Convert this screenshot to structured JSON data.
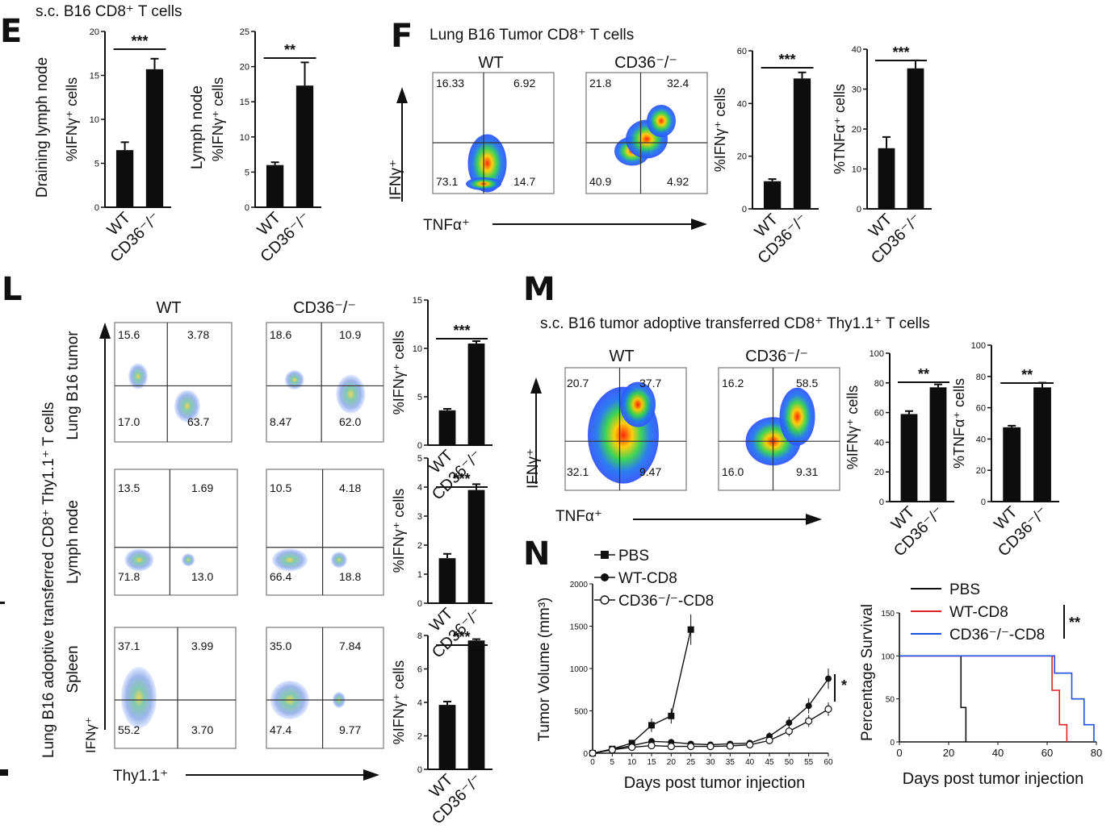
{
  "panels": {
    "E": {
      "letter": "E",
      "title": "s.c. B16 CD8⁺ T cells"
    },
    "F": {
      "letter": "F",
      "title": "Lung B16 Tumor CD8⁺ T cells",
      "x_label": "TNFα⁺",
      "y_label": "IFNγ⁺"
    },
    "L": {
      "letter": "L",
      "side_label": "Lung B16 adoptive transferred CD8⁺ Thy1.1⁺ T cells",
      "row_labels": [
        "Lung B16 tumor",
        "Lymph node",
        "Spleen"
      ],
      "x_label": "Thy1.1⁺",
      "y_label": "IFNγ⁺"
    },
    "M": {
      "letter": "M",
      "title": "s.c. B16 tumor adoptive transferred CD8⁺ Thy1.1⁺ T cells",
      "x_label": "TNFα⁺",
      "y_label": "IFNγ⁺"
    },
    "N": {
      "letter": "N"
    }
  },
  "flow_plots": [
    {
      "id": "F-WT",
      "header": "WT",
      "quadrants": [
        "16.33",
        "6.92",
        "73.1",
        "14.7"
      ]
    },
    {
      "id": "F-KO",
      "header": "CD36⁻/⁻",
      "quadrants": [
        "21.8",
        "32.4",
        "40.9",
        "4.92"
      ]
    },
    {
      "id": "L-WT-tumor",
      "header": "WT",
      "quadrants": [
        "15.6",
        "3.78",
        "17.0",
        "63.7"
      ]
    },
    {
      "id": "L-KO-tumor",
      "header": "CD36⁻/⁻",
      "quadrants": [
        "18.6",
        "10.9",
        "8.47",
        "62.0"
      ]
    },
    {
      "id": "L-WT-ln",
      "header": "",
      "quadrants": [
        "13.5",
        "1.69",
        "71.8",
        "13.0"
      ]
    },
    {
      "id": "L-KO-ln",
      "header": "",
      "quadrants": [
        "10.5",
        "4.18",
        "66.4",
        "18.8"
      ]
    },
    {
      "id": "L-WT-spl",
      "header": "",
      "quadrants": [
        "37.1",
        "3.99",
        "55.2",
        "3.70"
      ]
    },
    {
      "id": "L-KO-spl",
      "header": "",
      "quadrants": [
        "35.0",
        "7.84",
        "47.4",
        "9.77"
      ]
    },
    {
      "id": "M-WT",
      "header": "WT",
      "quadrants": [
        "20.7",
        "37.7",
        "32.1",
        "9.47"
      ]
    },
    {
      "id": "M-KO",
      "header": "CD36⁻/⁻",
      "quadrants": [
        "16.2",
        "58.5",
        "16.0",
        "9.31"
      ]
    }
  ],
  "chart_data": [
    {
      "id": "E1",
      "type": "bar",
      "categories": [
        "WT",
        "CD36⁻/⁻"
      ],
      "values": [
        6.5,
        15.7
      ],
      "errors": [
        0.9,
        1.2
      ],
      "ylim": [
        0,
        20
      ],
      "yticks": [
        "0",
        "5",
        "10",
        "15",
        "20"
      ],
      "ylabel": "%IFNγ⁺ cells",
      "ylabel2": "Draining lymph node",
      "significance": "***"
    },
    {
      "id": "E2",
      "type": "bar",
      "categories": [
        "WT",
        "CD36⁻/⁻"
      ],
      "values": [
        6.0,
        17.3
      ],
      "errors": [
        0.4,
        3.3
      ],
      "ylim": [
        0,
        25
      ],
      "yticks": [
        "0",
        "5",
        "10",
        "15",
        "20",
        "25"
      ],
      "ylabel": "%IFNγ⁺ cells",
      "ylabel2": "Lymph node",
      "significance": "**"
    },
    {
      "id": "F1",
      "type": "bar",
      "categories": [
        "WT",
        "CD36⁻/⁻"
      ],
      "values": [
        10.5,
        49.5
      ],
      "errors": [
        0.8,
        2.3
      ],
      "ylim": [
        0,
        60
      ],
      "yticks": [
        "0",
        "20",
        "40",
        "60"
      ],
      "ylabel": "%IFNγ⁺ cells",
      "significance": "***"
    },
    {
      "id": "F2",
      "type": "bar",
      "categories": [
        "WT",
        "CD36⁻/⁻"
      ],
      "values": [
        15.2,
        35.2
      ],
      "errors": [
        2.8,
        2.0
      ],
      "ylim": [
        0,
        40
      ],
      "yticks": [
        "0",
        "10",
        "20",
        "30",
        "40"
      ],
      "ylabel": "%TNFα⁺ cells",
      "significance": "***"
    },
    {
      "id": "L1",
      "type": "bar",
      "categories": [
        "WT",
        "CD36⁻/⁻"
      ],
      "values": [
        3.6,
        10.5
      ],
      "errors": [
        0.15,
        0.25
      ],
      "ylim": [
        0,
        15
      ],
      "yticks": [
        "0",
        "5",
        "10",
        "15"
      ],
      "ylabel": "%IFNγ⁺ cells",
      "significance": "***"
    },
    {
      "id": "L2",
      "type": "bar",
      "categories": [
        "WT",
        "CD36⁻/⁻"
      ],
      "values": [
        1.55,
        3.9
      ],
      "errors": [
        0.15,
        0.2
      ],
      "ylim": [
        0,
        5
      ],
      "yticks": [
        "0",
        "1",
        "2",
        "3",
        "4",
        "5"
      ],
      "ylabel": "%IFNγ⁺ cells",
      "significance": "***"
    },
    {
      "id": "L3",
      "type": "bar",
      "categories": [
        "WT",
        "CD36⁻/⁻"
      ],
      "values": [
        3.85,
        7.7
      ],
      "errors": [
        0.2,
        0.08
      ],
      "ylim": [
        0,
        8
      ],
      "yticks": [
        "0",
        "2",
        "4",
        "6",
        "8"
      ],
      "ylabel": "%IFNγ⁺ cells",
      "significance": "***"
    },
    {
      "id": "M1",
      "type": "bar",
      "categories": [
        "WT",
        "CD36⁻/⁻"
      ],
      "values": [
        59,
        77
      ],
      "errors": [
        2,
        2
      ],
      "ylim": [
        0,
        100
      ],
      "yticks": [
        "0",
        "20",
        "40",
        "60",
        "80",
        "100"
      ],
      "ylabel": "%IFNγ⁺ cells",
      "significance": "**"
    },
    {
      "id": "M2",
      "type": "bar",
      "categories": [
        "WT",
        "CD36⁻/⁻"
      ],
      "values": [
        47.5,
        73
      ],
      "errors": [
        1,
        3
      ],
      "ylim": [
        0,
        100
      ],
      "yticks": [
        "0",
        "20",
        "40",
        "60",
        "80",
        "100"
      ],
      "ylabel": "%TNFα⁺ cells",
      "significance": "**"
    },
    {
      "id": "N1",
      "type": "line",
      "title": "",
      "xlabel": "Days post tumor injection",
      "ylabel": "Tumor Volume (mm³)",
      "xlim": [
        0,
        60
      ],
      "ylim": [
        0,
        2000
      ],
      "xticks": [
        "0",
        "5",
        "10",
        "15",
        "20",
        "25",
        "30",
        "35",
        "40",
        "45",
        "50",
        "55",
        "60"
      ],
      "yticks": [
        "0",
        "500",
        "1000",
        "1500",
        "2000"
      ],
      "significance": "*",
      "series": [
        {
          "name": "PBS",
          "marker": "square",
          "x": [
            0,
            5,
            10,
            15,
            20,
            25
          ],
          "y": [
            0,
            50,
            120,
            330,
            440,
            1460
          ],
          "err": [
            0,
            15,
            30,
            80,
            90,
            180
          ]
        },
        {
          "name": "WT-CD8",
          "marker": "circle",
          "x": [
            0,
            5,
            10,
            15,
            20,
            25,
            30,
            35,
            40,
            45,
            50,
            55,
            60
          ],
          "y": [
            0,
            45,
            90,
            140,
            130,
            110,
            100,
            110,
            120,
            200,
            360,
            560,
            880
          ],
          "err": [
            0,
            10,
            20,
            30,
            25,
            20,
            20,
            20,
            30,
            50,
            70,
            90,
            120
          ]
        },
        {
          "name": "CD36⁻/⁻-CD8",
          "marker": "open-circle",
          "x": [
            0,
            5,
            10,
            15,
            20,
            25,
            30,
            35,
            40,
            45,
            50,
            55,
            60
          ],
          "y": [
            0,
            40,
            70,
            90,
            80,
            80,
            80,
            85,
            100,
            150,
            260,
            380,
            520
          ],
          "err": [
            0,
            10,
            15,
            20,
            20,
            15,
            15,
            15,
            20,
            40,
            60,
            70,
            80
          ]
        }
      ]
    },
    {
      "id": "N2",
      "type": "line",
      "title": "",
      "xlabel": "Days post tumor injection",
      "ylabel": "Percentage Survival",
      "xlim": [
        0,
        80
      ],
      "ylim": [
        0,
        150
      ],
      "xticks": [
        "0",
        "20",
        "40",
        "60",
        "80"
      ],
      "yticks": [
        "0",
        "50",
        "100",
        "150"
      ],
      "significance": "**",
      "series": [
        {
          "name": "PBS",
          "color": "#111111",
          "x": [
            0,
            25,
            25,
            27,
            27
          ],
          "y": [
            100,
            100,
            40,
            40,
            0
          ]
        },
        {
          "name": "WT-CD8",
          "color": "#e02020",
          "x": [
            0,
            62,
            62,
            65,
            65,
            68,
            68
          ],
          "y": [
            100,
            100,
            60,
            60,
            20,
            20,
            0
          ]
        },
        {
          "name": "CD36⁻/⁻-CD8",
          "color": "#2050e0",
          "x": [
            0,
            63,
            63,
            70,
            70,
            75,
            75,
            79,
            79
          ],
          "y": [
            100,
            100,
            80,
            80,
            50,
            50,
            20,
            20,
            0
          ]
        }
      ]
    }
  ]
}
